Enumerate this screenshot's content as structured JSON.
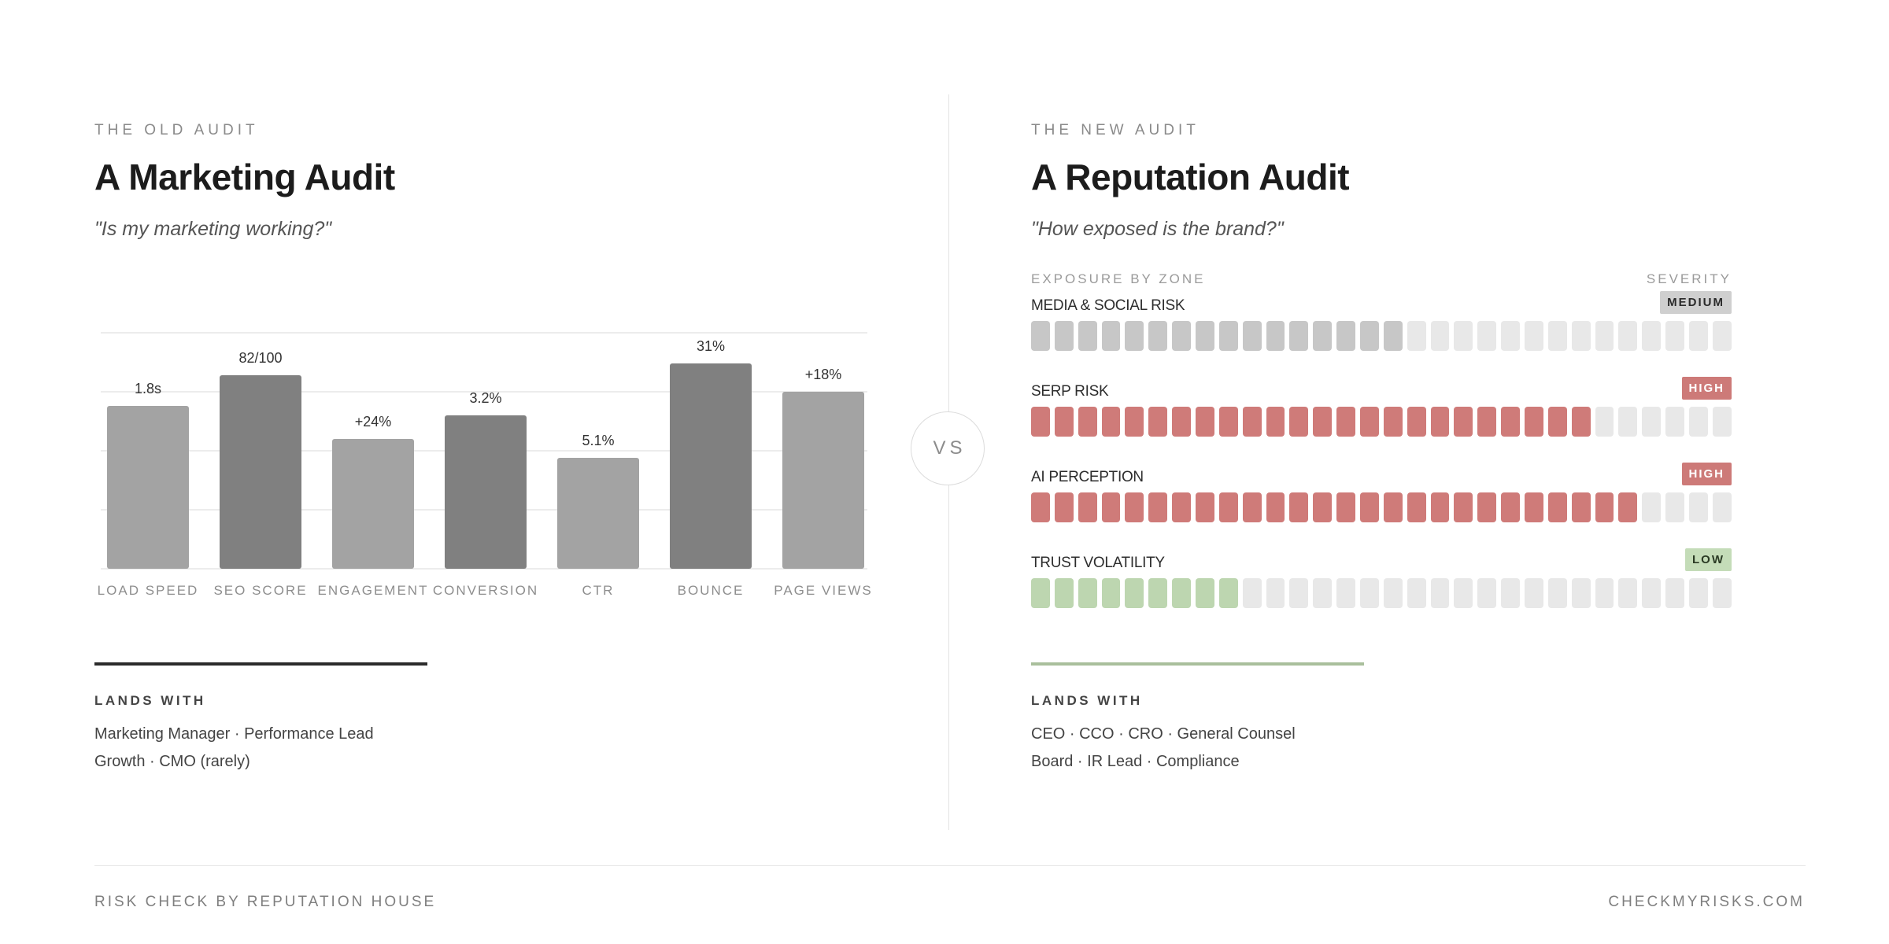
{
  "old_audit": {
    "eyebrow": "THE OLD AUDIT",
    "title": "A Marketing Audit",
    "question": "\"Is my marketing working?\"",
    "lands_with_label": "LANDS WITH",
    "lands_with_lines": [
      "Marketing Manager · Performance Lead",
      "Growth · CMO (rarely)"
    ]
  },
  "vs_label": "VS",
  "new_audit": {
    "eyebrow": "THE NEW AUDIT",
    "title": "A Reputation Audit",
    "question": "\"How exposed is the brand?\"",
    "exposure_header": "EXPOSURE BY ZONE",
    "severity_header": "SEVERITY",
    "segments_total": 30,
    "zones": [
      {
        "name": "MEDIA & SOCIAL RISK",
        "severity": "MEDIUM",
        "filled": 16,
        "fill_color": "#c7c7c7",
        "badge_bg": "#cfcfcf",
        "badge_color": "#2a2a2a"
      },
      {
        "name": "SERP RISK",
        "severity": "HIGH",
        "filled": 24,
        "fill_color": "#cf7b79",
        "badge_bg": "#cd7a78",
        "badge_color": "#ffffff"
      },
      {
        "name": "AI PERCEPTION",
        "severity": "HIGH",
        "filled": 26,
        "fill_color": "#cf7b79",
        "badge_bg": "#cd7a78",
        "badge_color": "#ffffff"
      },
      {
        "name": "TRUST VOLATILITY",
        "severity": "LOW",
        "filled": 9,
        "fill_color": "#bdd6b0",
        "badge_bg": "#c4dcb8",
        "badge_color": "#2a3a24"
      }
    ],
    "lands_with_label": "LANDS WITH",
    "lands_with_lines": [
      "CEO · CCO · CRO · General Counsel",
      "Board · IR Lead · Compliance"
    ]
  },
  "footer": {
    "left": "RISK CHECK BY REPUTATION HOUSE",
    "right": "CHECKMYRISKS.COM"
  },
  "chart_data": {
    "type": "bar",
    "categories": [
      "LOAD SPEED",
      "SEO SCORE",
      "ENGAGEMENT",
      "CONVERSION",
      "CTR",
      "BOUNCE",
      "PAGE VIEWS"
    ],
    "data_labels": [
      "1.8s",
      "82/100",
      "+24%",
      "3.2%",
      "5.1%",
      "31%",
      "+18%"
    ],
    "values": [
      0.69,
      0.82,
      0.55,
      0.65,
      0.47,
      0.87,
      0.75
    ],
    "value_scale": "relative bar height (0–1 of plot height); bars carry no numeric axis",
    "colors": [
      "#a3a3a3",
      "#808080",
      "#a3a3a3",
      "#808080",
      "#a3a3a3",
      "#808080",
      "#a3a3a3"
    ],
    "grid": true,
    "ylim": [
      0,
      1
    ],
    "title": "",
    "xlabel": "",
    "ylabel": ""
  }
}
